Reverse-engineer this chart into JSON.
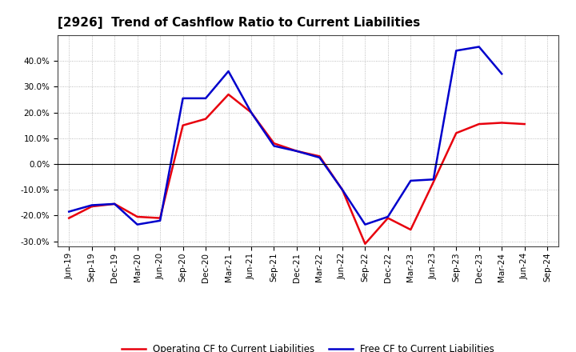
{
  "title": "[2926]  Trend of Cashflow Ratio to Current Liabilities",
  "x_labels": [
    "Jun-19",
    "Sep-19",
    "Dec-19",
    "Mar-20",
    "Jun-20",
    "Sep-20",
    "Dec-20",
    "Mar-21",
    "Jun-21",
    "Sep-21",
    "Dec-21",
    "Mar-22",
    "Jun-22",
    "Sep-22",
    "Dec-22",
    "Mar-23",
    "Jun-23",
    "Sep-23",
    "Dec-23",
    "Mar-24",
    "Jun-24",
    "Sep-24"
  ],
  "operating_cf": [
    -0.21,
    -0.165,
    -0.155,
    -0.205,
    -0.21,
    0.15,
    0.175,
    0.27,
    0.2,
    0.08,
    0.05,
    0.03,
    -0.1,
    -0.31,
    -0.21,
    -0.255,
    -0.07,
    0.12,
    0.155,
    0.16,
    0.155,
    null
  ],
  "free_cf": [
    -0.185,
    -0.16,
    -0.155,
    -0.235,
    -0.22,
    0.255,
    0.255,
    0.36,
    0.2,
    0.07,
    0.05,
    0.025,
    -0.1,
    -0.235,
    -0.205,
    -0.065,
    -0.06,
    0.44,
    0.455,
    0.35,
    null,
    null
  ],
  "operating_color": "#e8000d",
  "free_color": "#0000cc",
  "ylim": [
    -0.32,
    0.5
  ],
  "yticks": [
    -0.3,
    -0.2,
    -0.1,
    0.0,
    0.1,
    0.2,
    0.3,
    0.4
  ],
  "legend_labels": [
    "Operating CF to Current Liabilities",
    "Free CF to Current Liabilities"
  ],
  "background_color": "#ffffff",
  "plot_bg_color": "#ffffff",
  "grid_color": "#aaaaaa",
  "line_width": 1.8,
  "title_fontsize": 11,
  "tick_fontsize": 7.5,
  "legend_fontsize": 8.5
}
